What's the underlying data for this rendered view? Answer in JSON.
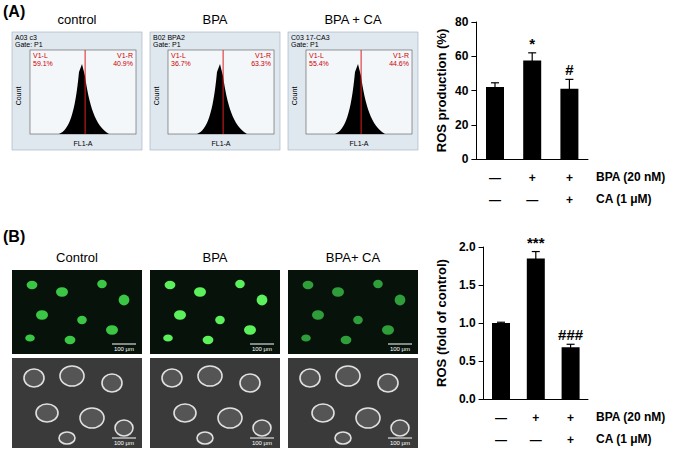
{
  "panel_labels": [
    "(A)",
    "(B)"
  ],
  "flow_cytometry": [
    {
      "title": "control",
      "sample": "A03 c3",
      "gate": "Gate: P1",
      "left_gate": "V1-L",
      "left_percent": "59.1%",
      "right_gate": "V1-R",
      "right_percent": "40.9%",
      "x_label": "FL1-A",
      "y_label": "Count"
    },
    {
      "title": "BPA",
      "sample": "B02 BPA2",
      "gate": "Gate: P1",
      "left_gate": "V1-L",
      "left_percent": "36.7%",
      "right_gate": "V1-R",
      "right_percent": "63.3%",
      "x_label": "FL1-A",
      "y_label": "Count"
    },
    {
      "title": "BPA + CA",
      "sample": "C03 17-CA3",
      "gate": "Gate: P1",
      "left_gate": "V1-L",
      "left_percent": "55.4%",
      "right_gate": "V1-R",
      "right_percent": "44.6%",
      "x_label": "FL1-A",
      "y_label": "Count"
    }
  ],
  "micrographs": {
    "titles": [
      "Control",
      "BPA",
      "BPA+ CA"
    ],
    "scale_bar": "100 μm"
  },
  "chart_data": [
    {
      "type": "bar",
      "ylabel": "ROS production (%)",
      "treatments": [
        {
          "name": "BPA (20 nM)",
          "marks": [
            "—",
            "+",
            "+"
          ]
        },
        {
          "name": "CA (1 μM)",
          "marks": [
            "—",
            "—",
            "+"
          ]
        }
      ],
      "values": [
        42,
        57.5,
        41
      ],
      "errors": [
        2.5,
        4.5,
        5.5
      ],
      "significance": [
        null,
        "*",
        "#"
      ],
      "color": "#000000",
      "ylim": [
        0,
        80
      ],
      "yticks": [
        0,
        20,
        40,
        60,
        80
      ],
      "grid": false
    },
    {
      "type": "bar",
      "ylabel": "ROS (fold of control)",
      "treatments": [
        {
          "name": "BPA (20 nM)",
          "marks": [
            "—",
            "+",
            "+"
          ]
        },
        {
          "name": "CA (1 μM)",
          "marks": [
            "—",
            "—",
            "+"
          ]
        }
      ],
      "values": [
        1.0,
        1.85,
        0.68
      ],
      "errors": [
        0.01,
        0.09,
        0.04
      ],
      "significance": [
        null,
        "***",
        "###"
      ],
      "color": "#000000",
      "ylim": [
        0,
        2
      ],
      "yticks": [
        {
          "value": 0,
          "label": "0.0"
        },
        0.5,
        {
          "value": 1,
          "label": "1.0"
        },
        1.5,
        {
          "value": 2,
          "label": "2.0"
        }
      ],
      "grid": false
    }
  ]
}
